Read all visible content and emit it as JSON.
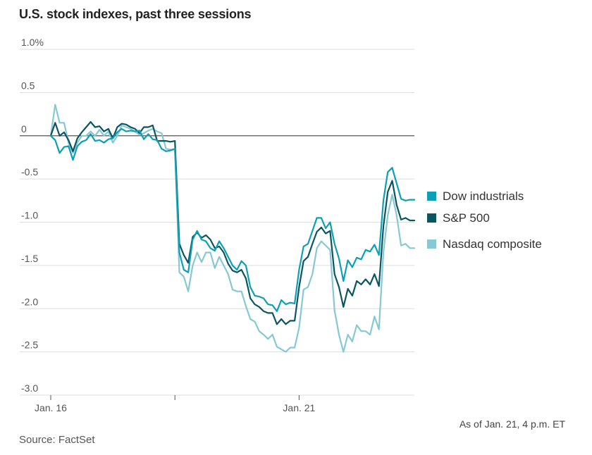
{
  "chart_data": {
    "type": "line",
    "title": "U.S. stock indexes, past three sessions",
    "ylabel": "",
    "xlabel": "",
    "ylim": [
      -3.0,
      1.0
    ],
    "y_ticks": [
      1.0,
      0.5,
      0,
      -0.5,
      -1.0,
      -1.5,
      -2.0,
      -2.5,
      -3.0
    ],
    "y_tick_labels": [
      "1.0%",
      "0.5",
      "0",
      "-0.5",
      "-1.0",
      "-1.5",
      "-2.0",
      "-2.5",
      "-3.0"
    ],
    "x_ticks": [
      {
        "index": 0,
        "label": "Jan. 16"
      },
      {
        "index": 28,
        "label": ""
      },
      {
        "index": 56,
        "label": "Jan. 21"
      }
    ],
    "grid": true,
    "legend_position": "right",
    "series": [
      {
        "name": "Dow industrials",
        "color": "#0c9fb5",
        "values": [
          0.0,
          -0.05,
          -0.2,
          -0.13,
          -0.12,
          -0.28,
          -0.12,
          -0.07,
          -0.05,
          0.02,
          -0.06,
          -0.05,
          -0.08,
          -0.04,
          -0.03,
          0.04,
          0.08,
          0.05,
          0.06,
          0.05,
          0.06,
          -0.04,
          0.02,
          -0.04,
          -0.05,
          -0.15,
          -0.18,
          -0.17,
          -0.15,
          -1.35,
          -1.55,
          -1.58,
          -1.2,
          -1.1,
          -1.2,
          -1.22,
          -1.3,
          -1.33,
          -1.22,
          -1.3,
          -1.4,
          -1.5,
          -1.55,
          -1.45,
          -1.5,
          -1.75,
          -1.85,
          -1.86,
          -1.88,
          -1.95,
          -1.96,
          -2.03,
          -1.9,
          -1.95,
          -1.93,
          -1.94,
          -1.55,
          -1.28,
          -1.25,
          -1.1,
          -0.95,
          -0.95,
          -1.07,
          -1.0,
          -1.25,
          -1.42,
          -1.68,
          -1.44,
          -1.52,
          -1.41,
          -1.43,
          -1.32,
          -1.34,
          -1.26,
          -1.38,
          -0.75,
          -0.42,
          -0.37,
          -0.55,
          -0.73,
          -0.75,
          -0.74,
          -0.74
        ]
      },
      {
        "name": "S&P 500",
        "color": "#0b5560",
        "values": [
          0.0,
          0.15,
          0.0,
          0.04,
          -0.05,
          -0.18,
          -0.03,
          0.04,
          0.1,
          0.16,
          0.1,
          0.11,
          0.05,
          0.08,
          -0.03,
          0.1,
          0.14,
          0.13,
          0.1,
          0.08,
          0.03,
          0.1,
          0.1,
          0.12,
          -0.06,
          -0.06,
          -0.06,
          -0.07,
          -0.06,
          -1.25,
          -1.38,
          -1.47,
          -1.17,
          -1.12,
          -1.18,
          -1.15,
          -1.2,
          -1.3,
          -1.28,
          -1.35,
          -1.48,
          -1.56,
          -1.58,
          -1.55,
          -1.65,
          -1.88,
          -1.95,
          -1.98,
          -2.03,
          -2.05,
          -2.05,
          -2.18,
          -2.12,
          -2.18,
          -2.14,
          -2.14,
          -1.75,
          -1.45,
          -1.4,
          -1.25,
          -1.11,
          -1.06,
          -1.13,
          -1.1,
          -1.6,
          -1.75,
          -1.98,
          -1.77,
          -1.85,
          -1.68,
          -1.72,
          -1.66,
          -1.72,
          -1.6,
          -1.74,
          -1.05,
          -0.65,
          -0.52,
          -0.8,
          -0.97,
          -0.95,
          -0.98,
          -0.98
        ]
      },
      {
        "name": "Nasdaq composite",
        "color": "#86c8d3",
        "values": [
          0.0,
          0.36,
          0.15,
          0.15,
          -0.08,
          -0.2,
          -0.08,
          0.0,
          0.0,
          0.05,
          0.0,
          0.07,
          0.0,
          0.05,
          -0.08,
          0.0,
          0.12,
          0.1,
          0.08,
          0.05,
          0.01,
          0.03,
          0.06,
          0.08,
          0.05,
          0.03,
          -0.15,
          -0.16,
          -0.16,
          -1.58,
          -1.63,
          -1.8,
          -1.5,
          -1.35,
          -1.46,
          -1.35,
          -1.35,
          -1.53,
          -1.4,
          -1.5,
          -1.6,
          -1.78,
          -1.8,
          -1.8,
          -1.97,
          -2.12,
          -2.15,
          -2.26,
          -2.3,
          -2.35,
          -2.3,
          -2.44,
          -2.47,
          -2.5,
          -2.45,
          -2.45,
          -2.22,
          -1.78,
          -1.75,
          -1.6,
          -1.3,
          -1.22,
          -1.27,
          -1.32,
          -2.02,
          -2.3,
          -2.5,
          -2.3,
          -2.38,
          -2.19,
          -2.26,
          -2.26,
          -2.3,
          -2.09,
          -2.24,
          -1.35,
          -0.92,
          -0.68,
          -0.92,
          -1.27,
          -1.25,
          -1.3,
          -1.3
        ]
      }
    ]
  },
  "note": "As of Jan. 21, 4 p.m. ET",
  "source": "Source: FactSet"
}
